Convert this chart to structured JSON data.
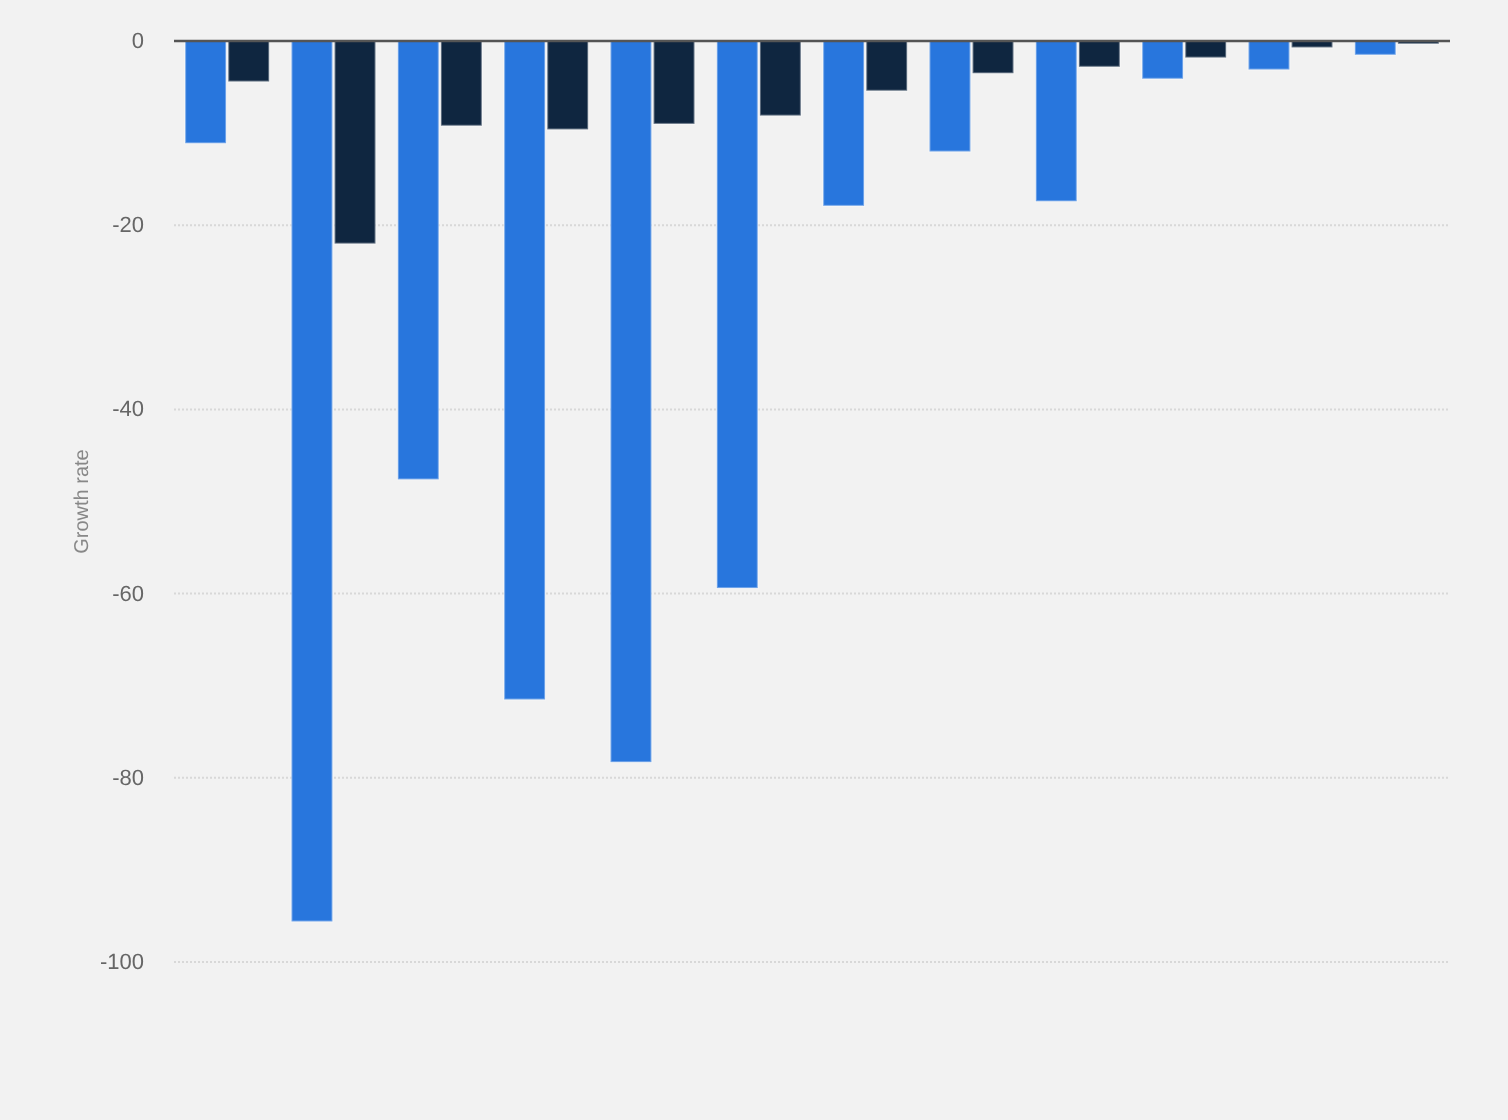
{
  "chart_data": {
    "type": "bar",
    "ylabel": "Growth rate",
    "categories": [
      null,
      null,
      null,
      null,
      null,
      null,
      null,
      null,
      null,
      null,
      null,
      null
    ],
    "series": [
      {
        "color": "#2876dd",
        "values": [
          -11.1,
          -95.6,
          -47.6,
          -71.5,
          -78.3,
          -59.4,
          -17.9,
          -12.0,
          -17.4,
          -4.1,
          -3.1,
          -1.5
        ]
      },
      {
        "color": "#0f2640",
        "values": [
          -4.4,
          -22.0,
          -9.2,
          -9.6,
          -9.0,
          -8.1,
          -5.4,
          -3.5,
          -2.8,
          -1.8,
          -0.7,
          -0.3
        ]
      }
    ],
    "ylim": [
      -100,
      0
    ],
    "yticks": [
      0,
      -20,
      -40,
      -60,
      -80,
      -100
    ],
    "grid": "y",
    "tick_labels": "y"
  }
}
